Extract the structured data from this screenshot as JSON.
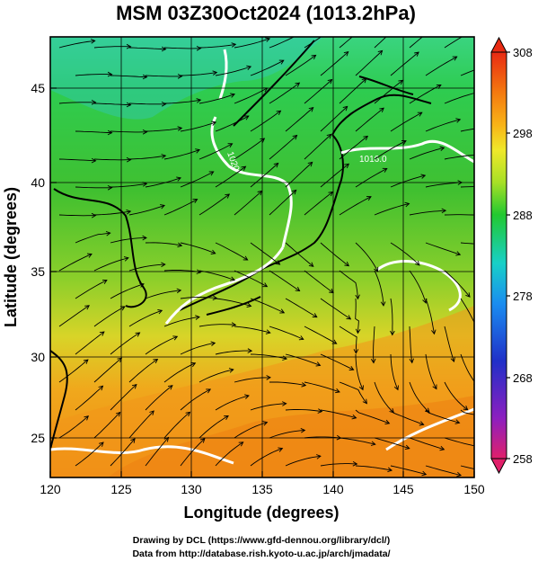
{
  "title": "MSM 03Z30Oct2024 (1013.2hPa)",
  "x_axis": {
    "label": "Longitude (degrees)",
    "ticks": [
      "120",
      "125",
      "130",
      "135",
      "140",
      "145",
      "150"
    ]
  },
  "y_axis": {
    "label": "Latitude  (degrees)",
    "ticks": [
      "25",
      "30",
      "35",
      "40",
      "45"
    ]
  },
  "colorbar": {
    "ticks": [
      "308",
      "298",
      "288",
      "278",
      "268",
      "258"
    ],
    "colors": [
      "#e0206a",
      "#8c1fc0",
      "#2030c8",
      "#1a8cf0",
      "#18d0c8",
      "#22c830",
      "#58d42a",
      "#a8e026",
      "#f0e82a",
      "#f8b418",
      "#f47a10",
      "#e82a12"
    ]
  },
  "contour_labels": [
    "1020",
    "1016.0"
  ],
  "credits": {
    "line1": "Drawing by DCL (https://www.gfd-dennou.org/library/dcl/)",
    "line2": "Data from http://database.rish.kyoto-u.ac.jp/arch/jmadata/"
  }
}
